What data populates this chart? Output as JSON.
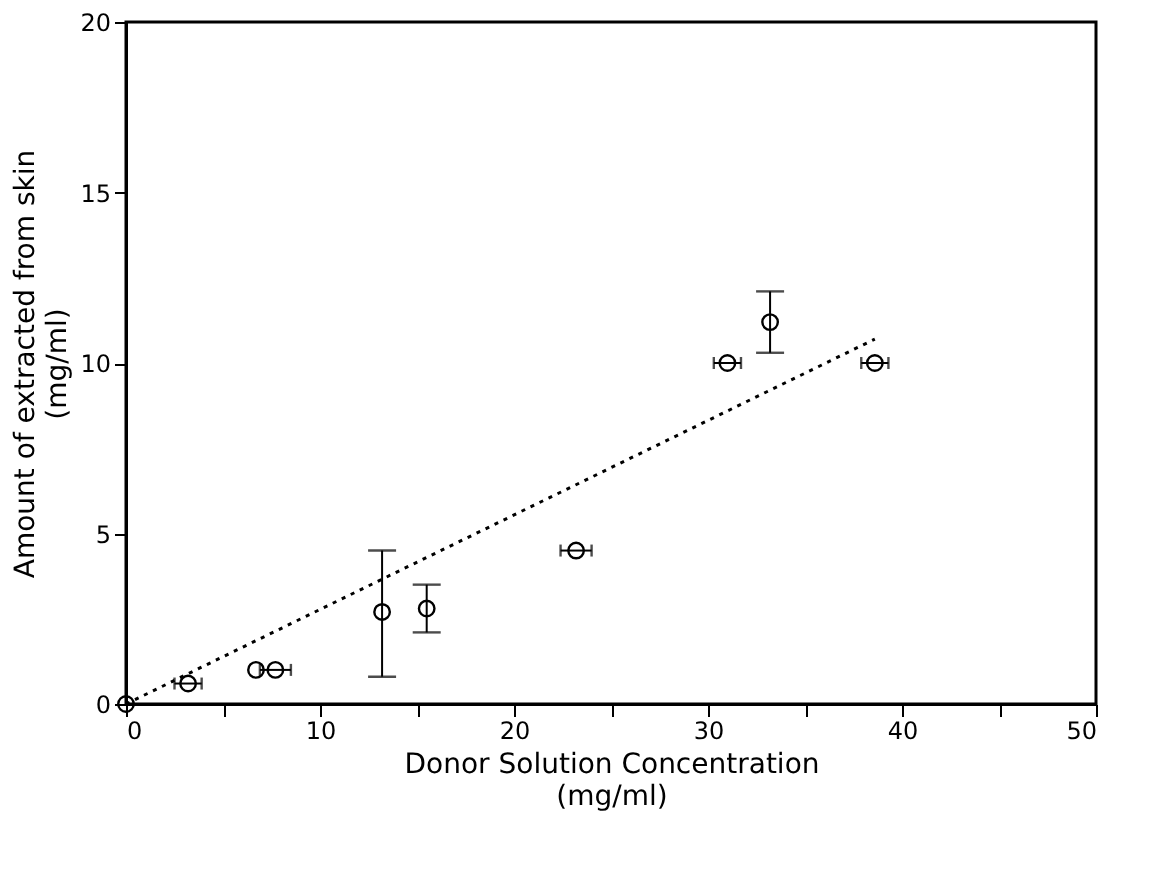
{
  "chart_data": {
    "type": "scatter",
    "xlabel": "Donor Solution Concentration\n(mg/ml)",
    "ylabel": "Amount of extracted from skin\n(mg/ml)",
    "xlim": [
      0,
      50
    ],
    "ylim": [
      0,
      20
    ],
    "xticks": [
      0,
      {
        "value": 5,
        "label": null
      },
      10,
      {
        "value": 15,
        "label": null
      },
      20,
      {
        "value": 25,
        "label": null
      },
      30,
      {
        "value": 35,
        "label": null
      },
      40,
      {
        "value": 45,
        "label": null
      },
      50
    ],
    "yticks": [
      0,
      5,
      10,
      15,
      20
    ],
    "grid": false,
    "marker": "circle",
    "series": [
      {
        "color": "#000000",
        "x": [
          0,
          3.2,
          6.7,
          7.7,
          13.2,
          15.5,
          23.2,
          31,
          33.2,
          38.6
        ],
        "values": [
          0,
          0.6,
          1.0,
          1.0,
          2.7,
          2.8,
          4.5,
          10.0,
          11.2,
          10.0
        ],
        "errors": [
          null,
          null,
          null,
          null,
          [
            0.8,
            4.5
          ],
          [
            2.1,
            3.5
          ],
          null,
          null,
          [
            10.3,
            12.1
          ],
          null
        ],
        "xerrors": [
          null,
          0.7,
          null,
          0.8,
          null,
          null,
          0.8,
          0.7,
          null,
          0.7
        ]
      },
      {
        "type": "line",
        "marker": "none",
        "color": "#000000",
        "line_style": "dotted",
        "x": [
          0,
          38.6
        ],
        "values": [
          0,
          10.7
        ]
      }
    ]
  }
}
